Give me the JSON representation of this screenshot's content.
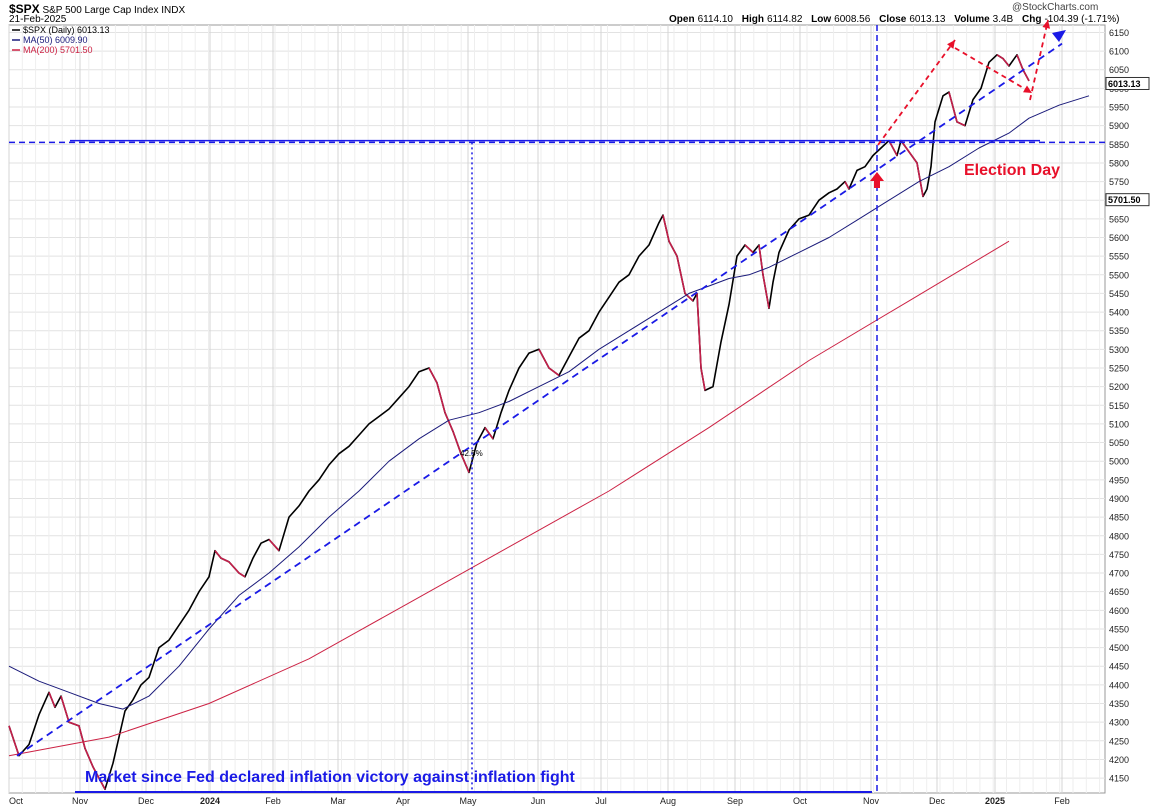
{
  "header": {
    "symbol": "$SPX",
    "name": "S&P 500 Large Cap Index",
    "exchange": "INDX",
    "date": "21-Feb-2025",
    "credit": "@StockCharts.com",
    "ohlc": {
      "open_label": "Open",
      "open": "6114.10",
      "high_label": "High",
      "high": "6114.82",
      "low_label": "Low",
      "low": "6008.56",
      "close_label": "Close",
      "close": "6013.13",
      "volume_label": "Volume",
      "volume": "3.4B",
      "chg_label": "Chg",
      "chg": "-104.39 (-1.71%)"
    }
  },
  "legend": [
    {
      "label": "$SPX (Daily) 6013.13",
      "color": "#000000"
    },
    {
      "label": "MA(50) 6009.90",
      "color": "#1a1a7a"
    },
    {
      "label": "MA(200) 5701.50",
      "color": "#cc2244"
    }
  ],
  "price_tags": {
    "close": "6013.13",
    "ma200": "5701.50"
  },
  "annotations": {
    "election": "Election Day",
    "caption": "Market since Fed declared inflation victory against inflation fight",
    "pct": "42.5%"
  },
  "chart_data": {
    "type": "line",
    "x_ticks": [
      "Oct",
      "Nov",
      "Dec",
      "2024",
      "Feb",
      "Mar",
      "Apr",
      "May",
      "Jun",
      "Jul",
      "Aug",
      "Sep",
      "Oct",
      "Nov",
      "Dec",
      "2025",
      "Feb"
    ],
    "y_ticks": [
      4150,
      4200,
      4250,
      4300,
      4350,
      4400,
      4450,
      4500,
      4550,
      4600,
      4650,
      4700,
      4750,
      4800,
      4850,
      4900,
      4950,
      5000,
      5050,
      5100,
      5150,
      5200,
      5250,
      5300,
      5350,
      5400,
      5450,
      5500,
      5550,
      5600,
      5650,
      5700,
      5750,
      5800,
      5850,
      5900,
      5950,
      6000,
      6050,
      6100,
      6150
    ],
    "ylim": [
      4110,
      6170
    ],
    "x_range_days": [
      0,
      510
    ],
    "series": [
      {
        "name": "$SPX (Daily)",
        "points": [
          [
            0,
            4290
          ],
          [
            5,
            4210
          ],
          [
            10,
            4240
          ],
          [
            15,
            4320
          ],
          [
            20,
            4380
          ],
          [
            23,
            4340
          ],
          [
            26,
            4370
          ],
          [
            30,
            4300
          ],
          [
            35,
            4290
          ],
          [
            38,
            4230
          ],
          [
            42,
            4180
          ],
          [
            48,
            4120
          ],
          [
            52,
            4190
          ],
          [
            58,
            4330
          ],
          [
            62,
            4360
          ],
          [
            66,
            4400
          ],
          [
            70,
            4420
          ],
          [
            75,
            4500
          ],
          [
            80,
            4520
          ],
          [
            85,
            4560
          ],
          [
            90,
            4600
          ],
          [
            95,
            4650
          ],
          [
            100,
            4690
          ],
          [
            103,
            4760
          ],
          [
            106,
            4740
          ],
          [
            110,
            4730
          ],
          [
            115,
            4700
          ],
          [
            118,
            4690
          ],
          [
            122,
            4740
          ],
          [
            126,
            4780
          ],
          [
            130,
            4790
          ],
          [
            135,
            4760
          ],
          [
            140,
            4850
          ],
          [
            145,
            4880
          ],
          [
            150,
            4920
          ],
          [
            155,
            4950
          ],
          [
            160,
            4990
          ],
          [
            165,
            5020
          ],
          [
            170,
            5040
          ],
          [
            175,
            5070
          ],
          [
            180,
            5100
          ],
          [
            185,
            5120
          ],
          [
            190,
            5140
          ],
          [
            195,
            5170
          ],
          [
            200,
            5200
          ],
          [
            205,
            5240
          ],
          [
            210,
            5250
          ],
          [
            214,
            5210
          ],
          [
            218,
            5130
          ],
          [
            222,
            5080
          ],
          [
            226,
            5020
          ],
          [
            230,
            4970
          ],
          [
            234,
            5050
          ],
          [
            238,
            5090
          ],
          [
            242,
            5060
          ],
          [
            246,
            5130
          ],
          [
            250,
            5190
          ],
          [
            255,
            5250
          ],
          [
            260,
            5290
          ],
          [
            265,
            5300
          ],
          [
            270,
            5250
          ],
          [
            275,
            5230
          ],
          [
            280,
            5280
          ],
          [
            285,
            5330
          ],
          [
            290,
            5350
          ],
          [
            295,
            5400
          ],
          [
            300,
            5440
          ],
          [
            305,
            5480
          ],
          [
            310,
            5500
          ],
          [
            315,
            5550
          ],
          [
            320,
            5580
          ],
          [
            325,
            5640
          ],
          [
            327,
            5660
          ],
          [
            330,
            5590
          ],
          [
            334,
            5550
          ],
          [
            338,
            5450
          ],
          [
            342,
            5430
          ],
          [
            344,
            5450
          ],
          [
            346,
            5250
          ],
          [
            348,
            5190
          ],
          [
            352,
            5200
          ],
          [
            356,
            5320
          ],
          [
            360,
            5420
          ],
          [
            364,
            5550
          ],
          [
            368,
            5580
          ],
          [
            372,
            5560
          ],
          [
            375,
            5580
          ],
          [
            377,
            5500
          ],
          [
            380,
            5410
          ],
          [
            382,
            5480
          ],
          [
            385,
            5560
          ],
          [
            390,
            5620
          ],
          [
            395,
            5650
          ],
          [
            400,
            5660
          ],
          [
            405,
            5700
          ],
          [
            410,
            5720
          ],
          [
            414,
            5730
          ],
          [
            418,
            5750
          ],
          [
            420,
            5730
          ],
          [
            424,
            5780
          ],
          [
            428,
            5790
          ],
          [
            432,
            5820
          ],
          [
            436,
            5840
          ],
          [
            440,
            5860
          ],
          [
            444,
            5820
          ],
          [
            446,
            5860
          ],
          [
            450,
            5830
          ],
          [
            454,
            5800
          ],
          [
            457,
            5710
          ],
          [
            459,
            5730
          ],
          [
            461,
            5790
          ],
          [
            463,
            5910
          ],
          [
            467,
            5980
          ],
          [
            470,
            5990
          ],
          [
            474,
            5910
          ],
          [
            478,
            5900
          ],
          [
            482,
            5970
          ],
          [
            486,
            6000
          ],
          [
            490,
            6070
          ],
          [
            494,
            6090
          ],
          [
            497,
            6080
          ],
          [
            500,
            6060
          ],
          [
            504,
            6090
          ],
          [
            507,
            6050
          ],
          [
            510,
            6020
          ]
        ]
      },
      {
        "name": "MA(50)",
        "points": [
          [
            0,
            4450
          ],
          [
            15,
            4410
          ],
          [
            30,
            4380
          ],
          [
            45,
            4350
          ],
          [
            57,
            4335
          ],
          [
            70,
            4370
          ],
          [
            85,
            4450
          ],
          [
            100,
            4550
          ],
          [
            115,
            4640
          ],
          [
            130,
            4700
          ],
          [
            145,
            4770
          ],
          [
            160,
            4850
          ],
          [
            175,
            4920
          ],
          [
            190,
            5000
          ],
          [
            205,
            5060
          ],
          [
            220,
            5110
          ],
          [
            235,
            5130
          ],
          [
            250,
            5160
          ],
          [
            265,
            5200
          ],
          [
            280,
            5240
          ],
          [
            295,
            5300
          ],
          [
            310,
            5350
          ],
          [
            325,
            5400
          ],
          [
            340,
            5450
          ],
          [
            350,
            5470
          ],
          [
            360,
            5490
          ],
          [
            370,
            5500
          ],
          [
            380,
            5520
          ],
          [
            395,
            5560
          ],
          [
            410,
            5600
          ],
          [
            425,
            5650
          ],
          [
            440,
            5700
          ],
          [
            455,
            5750
          ],
          [
            470,
            5790
          ],
          [
            485,
            5840
          ],
          [
            500,
            5880
          ],
          [
            510,
            5920
          ],
          [
            525,
            5955
          ],
          [
            540,
            5980
          ],
          [
            560,
            5995
          ],
          [
            580,
            6005
          ],
          [
            600,
            6012
          ]
        ]
      },
      {
        "name": "MA(200)",
        "points": [
          [
            0,
            4210
          ],
          [
            50,
            4260
          ],
          [
            100,
            4350
          ],
          [
            150,
            4470
          ],
          [
            200,
            4620
          ],
          [
            250,
            4770
          ],
          [
            300,
            4920
          ],
          [
            350,
            5090
          ],
          [
            400,
            5270
          ],
          [
            450,
            5430
          ],
          [
            500,
            5590
          ],
          [
            550,
            5700
          ]
        ]
      }
    ]
  }
}
